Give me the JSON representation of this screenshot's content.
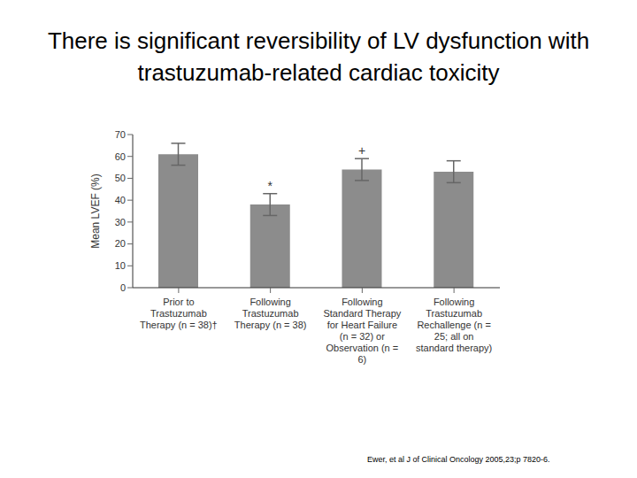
{
  "chart_data": {
    "type": "bar",
    "title": "There is significant reversibility of LV dysfunction with trastuzumab-related cardiac toxicity",
    "y_label": "Mean LVEF (%)",
    "categories": [
      "Prior to Trastuzumab Therapy (n = 38)†",
      "Following Trastuzumab Therapy (n = 38)",
      "Following Standard Therapy for Heart Failure (n = 32) or Observation (n = 6)",
      "Following Trastuzumab Rechallenge (n = 25; all on standard therapy)"
    ],
    "values": [
      61,
      38,
      54,
      53
    ],
    "errors": [
      5,
      5,
      5,
      5
    ],
    "color": "#8c8c8c",
    "ylim": [
      0,
      70
    ],
    "yticks": [
      0,
      10,
      20,
      30,
      40,
      50,
      60,
      70
    ],
    "grid": false,
    "annotations": [
      {
        "category": "Following Trastuzumab Therapy (n = 38)",
        "text": "*"
      },
      {
        "category": "Following Standard Therapy for Heart Failure (n = 32) or Observation (n = 6)",
        "text": "+"
      }
    ],
    "source": "Ewer, et al J of Clinical Oncology 2005,23;p 7820-6."
  }
}
